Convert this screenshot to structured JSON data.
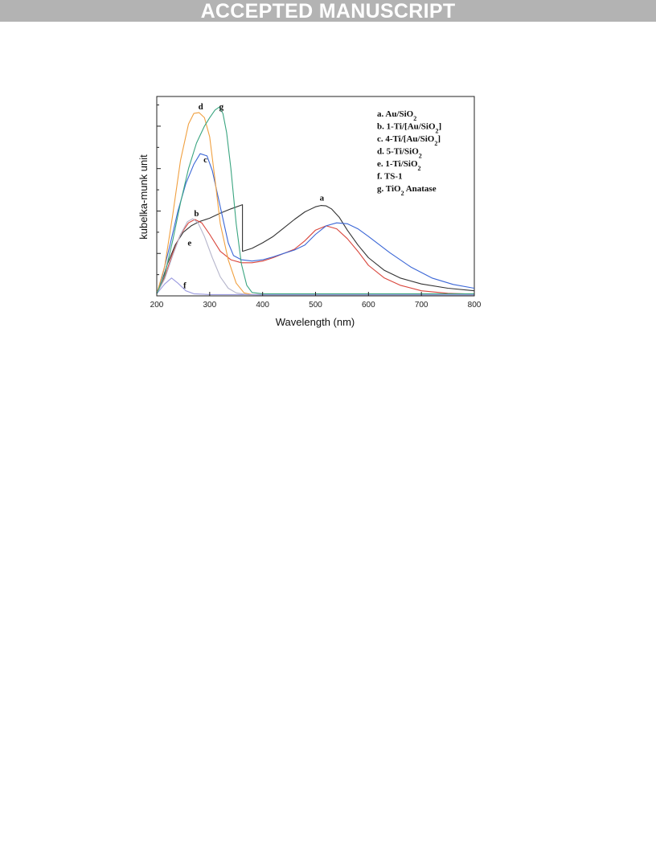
{
  "header": {
    "banner": "ACCEPTED MANUSCRIPT"
  },
  "chart_data": {
    "type": "line",
    "title": "",
    "xlabel": "Wavelength (nm)",
    "ylabel": "kubelka-munk unit",
    "xlim": [
      200,
      800
    ],
    "ylim": [
      0,
      4.7
    ],
    "x_ticks": [
      200,
      300,
      400,
      500,
      600,
      700,
      800
    ],
    "y_ticks_labeled": false,
    "grid": false,
    "legend_position": "top-right",
    "legend": [
      {
        "id": "a",
        "prefix": "a. Au/SiO",
        "sub": "2",
        "suffix": ""
      },
      {
        "id": "b",
        "prefix": "b. 1-Ti/[Au/SiO",
        "sub": "2",
        "suffix": "]"
      },
      {
        "id": "c",
        "prefix": "c. 4-Ti/[Au/SiO",
        "sub": "2",
        "suffix": "]"
      },
      {
        "id": "d",
        "prefix": "d. 5-Ti/SiO",
        "sub": "2",
        "suffix": ""
      },
      {
        "id": "e",
        "prefix": "e. 1-Ti/SiO",
        "sub": "2",
        "suffix": ""
      },
      {
        "id": "f",
        "prefix": "f.  TS-1",
        "sub": "",
        "suffix": ""
      },
      {
        "id": "g",
        "prefix": "g. TiO",
        "sub": "2",
        "suffix": " Anatase"
      }
    ],
    "series": [
      {
        "id": "a",
        "label": "a",
        "color": "#333333",
        "x": [
          200,
          210,
          220,
          235,
          250,
          265,
          280,
          300,
          320,
          340,
          362,
          362,
          380,
          400,
          420,
          440,
          460,
          480,
          500,
          510,
          520,
          530,
          545,
          560,
          580,
          600,
          630,
          660,
          700,
          750,
          800
        ],
        "y": [
          0.05,
          0.35,
          0.75,
          1.2,
          1.5,
          1.65,
          1.75,
          1.83,
          1.95,
          2.05,
          2.15,
          1.05,
          1.12,
          1.25,
          1.4,
          1.6,
          1.8,
          1.98,
          2.1,
          2.13,
          2.12,
          2.05,
          1.85,
          1.55,
          1.2,
          0.9,
          0.6,
          0.42,
          0.28,
          0.18,
          0.12
        ]
      },
      {
        "id": "b",
        "label": "b",
        "color": "#d9453b",
        "x": [
          200,
          215,
          230,
          245,
          260,
          272,
          285,
          300,
          320,
          340,
          360,
          380,
          400,
          420,
          440,
          460,
          480,
          500,
          520,
          540,
          560,
          580,
          600,
          630,
          660,
          700,
          750,
          800
        ],
        "y": [
          0.05,
          0.45,
          1.0,
          1.45,
          1.72,
          1.8,
          1.72,
          1.45,
          1.05,
          0.85,
          0.78,
          0.78,
          0.82,
          0.9,
          1.0,
          1.1,
          1.3,
          1.55,
          1.65,
          1.58,
          1.35,
          1.05,
          0.72,
          0.42,
          0.25,
          0.12,
          0.06,
          0.04
        ]
      },
      {
        "id": "c",
        "label": "c",
        "color": "#3a66d6",
        "x": [
          200,
          210,
          225,
          240,
          255,
          270,
          282,
          295,
          305,
          320,
          335,
          345,
          360,
          380,
          400,
          420,
          440,
          460,
          480,
          500,
          520,
          540,
          560,
          580,
          600,
          640,
          680,
          720,
          760,
          800
        ],
        "y": [
          0.05,
          0.45,
          1.2,
          2.0,
          2.65,
          3.1,
          3.35,
          3.3,
          2.95,
          2.1,
          1.25,
          0.95,
          0.85,
          0.82,
          0.85,
          0.92,
          1.0,
          1.08,
          1.2,
          1.45,
          1.65,
          1.72,
          1.7,
          1.58,
          1.4,
          1.02,
          0.68,
          0.42,
          0.27,
          0.18
        ]
      },
      {
        "id": "d",
        "label": "d",
        "color": "#f0a040",
        "x": [
          200,
          215,
          230,
          245,
          260,
          270,
          280,
          290,
          300,
          310,
          320,
          335,
          350,
          365,
          380,
          400,
          500,
          600,
          700,
          800
        ],
        "y": [
          0.05,
          0.7,
          1.9,
          3.2,
          4.05,
          4.3,
          4.32,
          4.2,
          3.75,
          2.75,
          1.7,
          0.85,
          0.3,
          0.07,
          0.03,
          0.03,
          0.03,
          0.03,
          0.03,
          0.03
        ]
      },
      {
        "id": "e",
        "label": "e",
        "color": "#b6b6cc",
        "x": [
          200,
          215,
          230,
          245,
          258,
          268,
          278,
          290,
          305,
          320,
          335,
          350,
          370,
          400,
          500,
          600,
          700,
          800
        ],
        "y": [
          0.05,
          0.4,
          0.95,
          1.45,
          1.75,
          1.82,
          1.72,
          1.4,
          0.9,
          0.45,
          0.18,
          0.07,
          0.03,
          0.02,
          0.02,
          0.02,
          0.02,
          0.02
        ]
      },
      {
        "id": "f",
        "label": "f",
        "color": "#9b9be0",
        "x": [
          200,
          215,
          228,
          240,
          255,
          270,
          300,
          400,
          500,
          600,
          700,
          800
        ],
        "y": [
          0.05,
          0.28,
          0.42,
          0.3,
          0.12,
          0.05,
          0.03,
          0.03,
          0.03,
          0.03,
          0.03,
          0.03
        ]
      },
      {
        "id": "g",
        "label": "g",
        "color": "#3aa580",
        "x": [
          200,
          215,
          230,
          245,
          260,
          275,
          290,
          300,
          310,
          318,
          325,
          332,
          340,
          350,
          360,
          370,
          380,
          400,
          500,
          600,
          700,
          800
        ],
        "y": [
          0.05,
          0.5,
          1.3,
          2.2,
          3.0,
          3.6,
          4.0,
          4.2,
          4.38,
          4.45,
          4.3,
          3.85,
          3.0,
          1.7,
          0.75,
          0.25,
          0.08,
          0.05,
          0.05,
          0.05,
          0.05,
          0.05
        ]
      }
    ],
    "peak_labels": [
      {
        "text": "d",
        "x": 283,
        "y": 4.4
      },
      {
        "text": "g",
        "x": 322,
        "y": 4.4
      },
      {
        "text": "c",
        "x": 292,
        "y": 3.15
      },
      {
        "text": "b",
        "x": 275,
        "y": 1.88
      },
      {
        "text": "e",
        "x": 262,
        "y": 1.18
      },
      {
        "text": "f",
        "x": 253,
        "y": 0.18
      },
      {
        "text": "a",
        "x": 512,
        "y": 2.25
      }
    ]
  }
}
